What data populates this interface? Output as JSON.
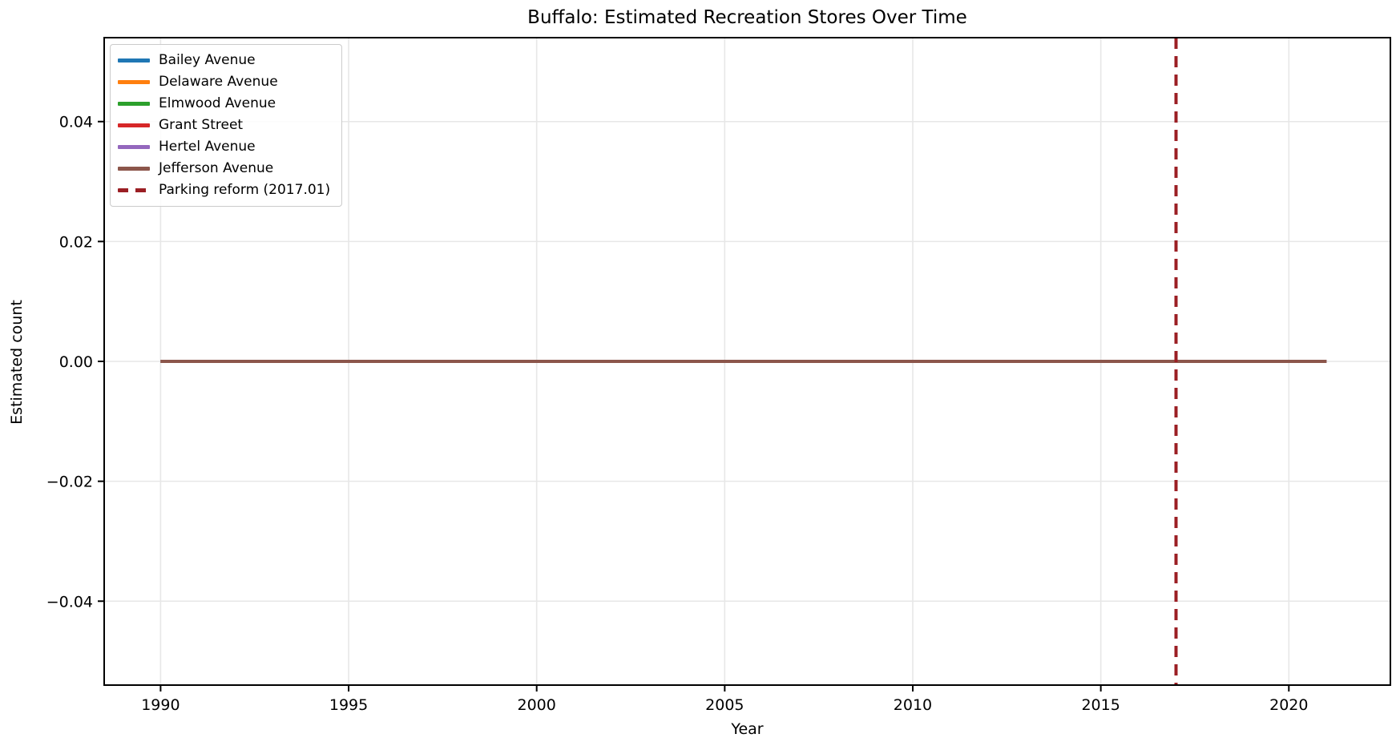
{
  "title": "Buffalo: Estimated Recreation Stores Over Time",
  "chart_data": {
    "type": "line",
    "title": "Buffalo: Estimated Recreation Stores Over Time",
    "xlabel": "Year",
    "ylabel": "Estimated count",
    "xlim": [
      1988.5,
      2022.7
    ],
    "ylim": [
      -0.054,
      0.054
    ],
    "x_ticks": [
      1990,
      1995,
      2000,
      2005,
      2010,
      2015,
      2020
    ],
    "y_ticks": [
      -0.04,
      -0.02,
      0,
      0.02,
      0.04
    ],
    "grid": true,
    "legend_position": "upper left",
    "x": [
      1990,
      2021
    ],
    "series": [
      {
        "name": "Bailey Avenue",
        "color": "#1f77b4",
        "values": [
          0,
          0
        ]
      },
      {
        "name": "Delaware Avenue",
        "color": "#ff7f0e",
        "values": [
          0,
          0
        ]
      },
      {
        "name": "Elmwood Avenue",
        "color": "#2ca02c",
        "values": [
          0,
          0
        ]
      },
      {
        "name": "Grant Street",
        "color": "#d62728",
        "values": [
          0,
          0
        ]
      },
      {
        "name": "Hertel Avenue",
        "color": "#9467bd",
        "values": [
          0,
          0
        ]
      },
      {
        "name": "Jefferson Avenue",
        "color": "#8c564b",
        "values": [
          0,
          0
        ]
      }
    ],
    "annotations": [
      {
        "type": "vline",
        "x": 2017,
        "label": "Parking reform (2017.01)",
        "color": "#9b1f24",
        "linestyle": "dashed"
      }
    ],
    "colors": {
      "grid": "#e7e7e7",
      "spine": "#000000",
      "text": "#000000"
    }
  }
}
